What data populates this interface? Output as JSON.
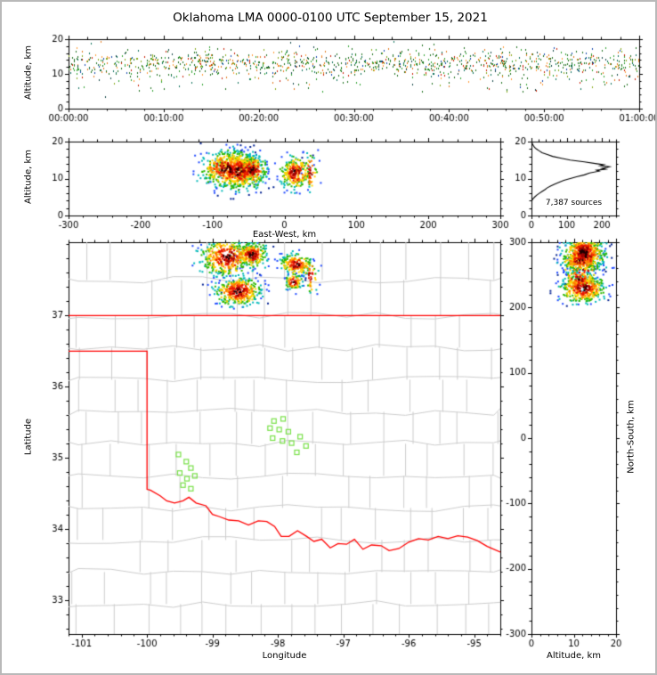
{
  "title": "Oklahoma LMA 0000-0100 UTC September 15, 2021",
  "geo": {
    "lon0": -97.9,
    "lat0": 35.275,
    "km_per_deg_lon": 90,
    "km_per_deg_lat": 111,
    "seed": 20210915
  },
  "colors": {
    "state_border": "#ff0000",
    "county_lines": "#cccccc",
    "station_marker": "#78e048",
    "histogram_line": "#000000",
    "axes": "#000000",
    "density_scale": [
      {
        "max": 0.35,
        "color": "#200000"
      },
      {
        "max": 0.55,
        "color": "#990000"
      },
      {
        "max": 0.8,
        "color": "#e81500"
      },
      {
        "max": 1.05,
        "color": "#ff7a00"
      },
      {
        "max": 1.35,
        "color": "#ffd400"
      },
      {
        "max": 1.7,
        "color": "#2eb800"
      },
      {
        "max": 2.1,
        "color": "#00b8b8"
      },
      {
        "max": 2.6,
        "color": "#1f49ff"
      },
      {
        "max": 99.0,
        "color": "#00208f"
      }
    ],
    "sparse_palette": [
      {
        "color": "#1c6e1c",
        "w": 0.32
      },
      {
        "color": "#2fa02f",
        "w": 0.15
      },
      {
        "color": "#0b6e5a",
        "w": 0.1
      },
      {
        "color": "#e07818",
        "w": 0.12
      },
      {
        "color": "#c81e00",
        "w": 0.07
      },
      {
        "color": "#86a818",
        "w": 0.08
      },
      {
        "color": "#1144aa",
        "w": 0.05
      },
      {
        "color": "#ff9933",
        "w": 0.06
      },
      {
        "color": "#114444",
        "w": 0.05
      }
    ]
  },
  "clusters": [
    {
      "lon": -98.78,
      "lat": 37.82,
      "sig_lon": 0.2,
      "sig_lat": 0.13,
      "alt_mean": 12.6,
      "sig_alt": 2.4,
      "n": 420
    },
    {
      "lon": -98.4,
      "lat": 37.85,
      "sig_lon": 0.11,
      "sig_lat": 0.09,
      "alt_mean": 12.2,
      "sig_alt": 2.1,
      "n": 240
    },
    {
      "lon": -98.6,
      "lat": 37.34,
      "sig_lon": 0.17,
      "sig_lat": 0.1,
      "alt_mean": 12.2,
      "sig_alt": 2.6,
      "n": 400
    },
    {
      "lon": -97.72,
      "lat": 37.72,
      "sig_lon": 0.12,
      "sig_lat": 0.075,
      "alt_mean": 11.6,
      "sig_alt": 2.2,
      "n": 190
    },
    {
      "lon": -97.76,
      "lat": 37.47,
      "sig_lon": 0.065,
      "sig_lat": 0.055,
      "alt_mean": 11.2,
      "sig_alt": 1.9,
      "n": 85
    },
    {
      "lon": -97.5,
      "lat": 37.55,
      "sig_lon": 0.06,
      "sig_lat": 0.12,
      "alt_mean": 12.0,
      "sig_alt": 2.8,
      "n": 45
    }
  ],
  "chart_data": [
    {
      "id": "time_height",
      "type": "scatter",
      "x_axis": {
        "lim": [
          0,
          3600
        ],
        "tick_values": [
          0,
          600,
          1200,
          1800,
          2400,
          3000,
          3600
        ],
        "tick_labels": [
          "00:00:00",
          "00:10:00",
          "00:20:00",
          "00:30:00",
          "00:40:00",
          "00:50:00",
          "01:00:00"
        ],
        "minor_step": 120
      },
      "y_axis": {
        "label": "Altitude, km",
        "lim": [
          0,
          20
        ],
        "tick_values": [
          0,
          10,
          20
        ],
        "tick_labels": [
          "0",
          "10",
          "20"
        ],
        "minor_step": 2
      },
      "points": {
        "n": 1250,
        "alt_mean": 13.3,
        "alt_sd": 1.9,
        "low_fraction": 0.08,
        "low_mean": 7.8,
        "low_sd": 1.8,
        "alt_min": 3.5,
        "alt_max": 19.4
      }
    },
    {
      "id": "ew_height",
      "type": "scatter",
      "series": "clusters",
      "x_axis": {
        "label": "East-West, km",
        "lim": [
          -300,
          300
        ],
        "tick_values": [
          -300,
          -200,
          -100,
          0,
          100,
          200,
          300
        ],
        "tick_labels": [
          "-300",
          "-200",
          "-100",
          "0",
          "100",
          "200",
          "300"
        ],
        "minor_step": 20
      },
      "y_axis": {
        "label": "Altitude, km",
        "lim": [
          0,
          20
        ],
        "tick_values": [
          0,
          10,
          20
        ],
        "tick_labels": [
          "0",
          "10",
          "20"
        ],
        "minor_step": 2
      }
    },
    {
      "id": "altitude_histogram",
      "type": "line",
      "annotation": "7,387 sources",
      "x_axis": {
        "lim": [
          0,
          240
        ],
        "tick_values": [
          0,
          100,
          200
        ],
        "tick_labels": [
          "0",
          "100",
          "200"
        ],
        "minor_step": 20
      },
      "y_axis": {
        "lim": [
          0,
          20
        ],
        "tick_values": [
          0,
          10,
          20
        ],
        "tick_labels": [
          "0",
          "10",
          "20"
        ],
        "minor_step": 2
      },
      "profile_count_vs_alt": [
        [
          0,
          20
        ],
        [
          2,
          19.5
        ],
        [
          5,
          19
        ],
        [
          8,
          18.5
        ],
        [
          14,
          18
        ],
        [
          22,
          17.5
        ],
        [
          30,
          17
        ],
        [
          45,
          16.5
        ],
        [
          60,
          16
        ],
        [
          85,
          15.5
        ],
        [
          110,
          15
        ],
        [
          150,
          14.5
        ],
        [
          185,
          14
        ],
        [
          205,
          13.75
        ],
        [
          195,
          13.5
        ],
        [
          222,
          13.2
        ],
        [
          215,
          13
        ],
        [
          200,
          12.75
        ],
        [
          210,
          12.5
        ],
        [
          185,
          12.25
        ],
        [
          192,
          12
        ],
        [
          165,
          11.5
        ],
        [
          150,
          11
        ],
        [
          128,
          10.5
        ],
        [
          110,
          10
        ],
        [
          92,
          9.5
        ],
        [
          78,
          9
        ],
        [
          66,
          8.5
        ],
        [
          55,
          8
        ],
        [
          45,
          7.5
        ],
        [
          38,
          7
        ],
        [
          30,
          6.5
        ],
        [
          22,
          6
        ],
        [
          15,
          5.5
        ],
        [
          9,
          5
        ],
        [
          4,
          4.5
        ],
        [
          1,
          4
        ],
        [
          0,
          3.5
        ]
      ]
    },
    {
      "id": "plan_view",
      "type": "scatter",
      "series": "clusters",
      "x_axis": {
        "label": "Longitude",
        "lim": [
          -101.2,
          -94.6
        ],
        "tick_values": [
          -101,
          -100,
          -99,
          -98,
          -97,
          -96,
          -95
        ],
        "tick_labels": [
          "-101",
          "-100",
          "-99",
          "-98",
          "-97",
          "-96",
          "-95"
        ],
        "minor_step": 0.2
      },
      "y_axis": {
        "label": "Latitude",
        "lim": [
          32.53,
          38.03
        ],
        "tick_values": [
          33,
          34,
          35,
          36,
          37
        ],
        "tick_labels": [
          "33",
          "34",
          "35",
          "36",
          "37"
        ],
        "minor_step": 0.2
      },
      "state_border": [
        [
          [
            -101.2,
            37.0
          ],
          [
            -94.6,
            37.0
          ]
        ],
        [
          [
            -101.2,
            36.5
          ],
          [
            -100.0,
            36.5
          ],
          [
            -100.0,
            34.56
          ],
          [
            -99.95,
            34.55
          ],
          [
            -99.8,
            34.47
          ],
          [
            -99.7,
            34.4
          ],
          [
            -99.58,
            34.37
          ],
          [
            -99.45,
            34.4
          ],
          [
            -99.36,
            34.45
          ],
          [
            -99.25,
            34.37
          ],
          [
            -99.1,
            34.33
          ],
          [
            -99.0,
            34.21
          ],
          [
            -98.9,
            34.18
          ],
          [
            -98.75,
            34.13
          ],
          [
            -98.6,
            34.12
          ],
          [
            -98.45,
            34.06
          ],
          [
            -98.3,
            34.12
          ],
          [
            -98.17,
            34.11
          ],
          [
            -98.05,
            34.04
          ],
          [
            -97.95,
            33.9
          ],
          [
            -97.83,
            33.9
          ],
          [
            -97.7,
            33.98
          ],
          [
            -97.56,
            33.9
          ],
          [
            -97.45,
            33.83
          ],
          [
            -97.33,
            33.86
          ],
          [
            -97.2,
            33.74
          ],
          [
            -97.08,
            33.8
          ],
          [
            -96.95,
            33.79
          ],
          [
            -96.83,
            33.86
          ],
          [
            -96.7,
            33.72
          ],
          [
            -96.57,
            33.78
          ],
          [
            -96.42,
            33.77
          ],
          [
            -96.3,
            33.7
          ],
          [
            -96.15,
            33.73
          ],
          [
            -96.0,
            33.82
          ],
          [
            -95.85,
            33.87
          ],
          [
            -95.7,
            33.85
          ],
          [
            -95.55,
            33.9
          ],
          [
            -95.4,
            33.87
          ],
          [
            -95.25,
            33.91
          ],
          [
            -95.1,
            33.89
          ],
          [
            -94.95,
            33.84
          ],
          [
            -94.8,
            33.76
          ],
          [
            -94.6,
            33.68
          ]
        ]
      ],
      "stations": [
        [
          -99.52,
          35.05
        ],
        [
          -99.4,
          34.95
        ],
        [
          -99.33,
          34.86
        ],
        [
          -99.5,
          34.79
        ],
        [
          -99.39,
          34.71
        ],
        [
          -99.27,
          34.75
        ],
        [
          -99.45,
          34.62
        ],
        [
          -99.33,
          34.57
        ],
        [
          -98.06,
          35.52
        ],
        [
          -97.92,
          35.55
        ],
        [
          -98.12,
          35.42
        ],
        [
          -97.98,
          35.4
        ],
        [
          -97.84,
          35.37
        ],
        [
          -98.08,
          35.28
        ],
        [
          -97.93,
          35.24
        ],
        [
          -97.79,
          35.21
        ],
        [
          -97.66,
          35.3
        ],
        [
          -97.71,
          35.08
        ],
        [
          -97.57,
          35.17
        ]
      ],
      "county_grid": {
        "cols": [
          -101.05,
          -100.55,
          -100.05,
          -99.6,
          -99.15,
          -98.72,
          -98.28,
          -97.85,
          -97.4,
          -96.95,
          -96.5,
          -96.05,
          -95.6,
          -95.15,
          -94.7
        ],
        "rows": [
          32.53,
          32.95,
          33.4,
          33.85,
          34.3,
          34.75,
          35.2,
          35.65,
          36.1,
          36.55,
          37.0,
          37.5,
          38.03
        ],
        "jitter_lon": 0.13,
        "jitter_lat": 0.05,
        "skip_fraction": 0.1
      }
    },
    {
      "id": "ns_height",
      "type": "scatter",
      "series": "clusters",
      "x_axis": {
        "label": "Altitude, km",
        "lim": [
          0,
          20
        ],
        "tick_values": [
          0,
          10,
          20
        ],
        "tick_labels": [
          "0",
          "10",
          "20"
        ],
        "minor_step": 2
      },
      "y_axis": {
        "label": "North-South, km",
        "lim": [
          -300,
          300
        ],
        "tick_values": [
          -300,
          -200,
          -100,
          0,
          100,
          200,
          300
        ],
        "tick_labels": [
          "-300",
          "-200",
          "-100",
          "0",
          "100",
          "200",
          "300"
        ],
        "minor_step": 20
      }
    }
  ]
}
